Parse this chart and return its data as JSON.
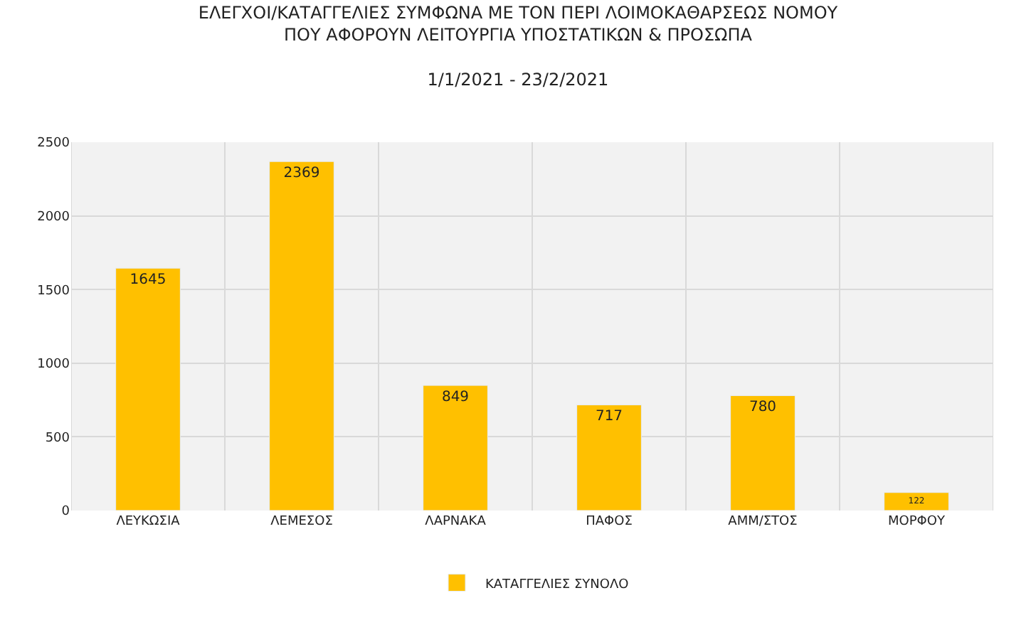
{
  "chart_data": {
    "type": "bar",
    "title": "ΕΛΕΓΧΟΙ/ΚΑΤΑΓΓΕΛΙΕΣ ΣΥΜΦΩΝΑ ΜΕ ΤΟΝ ΠΕΡΙ ΛΟΙΜΟΚΑΘΑΡΣΕΩΣ ΝΟΜΟΥ\nΠΟΥ ΑΦΟΡΟΥΝ ΛΕΙΤΟΥΡΓΙΑ ΥΠΟΣΤΑΤΙΚΩΝ & ΠΡΟΣΩΠΑ",
    "subtitle": "1/1/2021 - 23/2/2021",
    "categories": [
      "ΛΕΥΚΩΣΙΑ",
      "ΛΕΜΕΣΟΣ",
      "ΛΑΡΝΑΚΑ",
      "ΠΑΦΟΣ",
      "ΑΜΜ/ΣΤΟΣ",
      "ΜΟΡΦΟΥ"
    ],
    "series": [
      {
        "name": "ΚΑΤΑΓΓΕΛΙΕΣ ΣΥΝΟΛΟ",
        "color": "#ffc000",
        "values": [
          1645,
          2369,
          849,
          717,
          780,
          122
        ]
      }
    ],
    "ylim": [
      0,
      2500
    ],
    "yticks": [
      0,
      500,
      1000,
      1500,
      2000,
      2500
    ],
    "grid": true,
    "legend": "bottom",
    "data_labels": true
  }
}
